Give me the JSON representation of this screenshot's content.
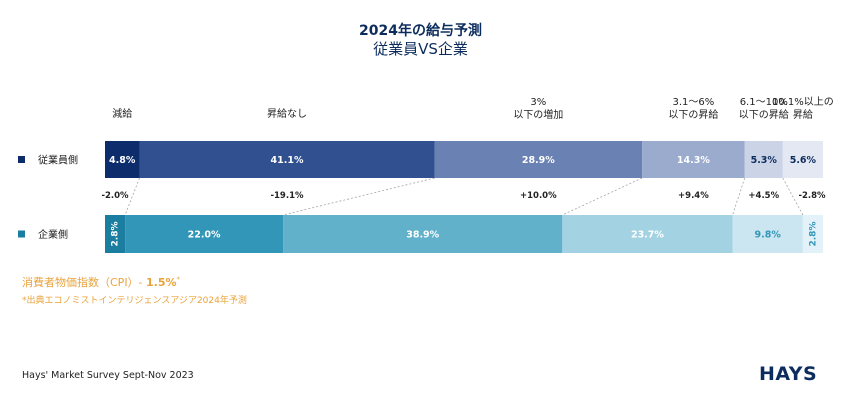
{
  "title": "2024年の給与予測",
  "subtitle": "従業員VS企業",
  "chart_data": {
    "type": "bar",
    "orientation": "horizontal-stacked-100",
    "categories": [
      "減給",
      "昇給なし",
      "3%\n以下の増加",
      "3.1〜6%\n以下の昇給",
      "6.1〜10%\n以下の昇給",
      "10.1%以上の\n昇給"
    ],
    "series": [
      {
        "name": "従業員側",
        "values": [
          4.8,
          41.1,
          28.9,
          14.3,
          5.3,
          5.6
        ],
        "labels": [
          "4.8%",
          "41.1%",
          "28.9%",
          "14.3%",
          "5.3%",
          "5.6%"
        ],
        "colors": [
          "#0d2c6c",
          "#30508f",
          "#6a81b3",
          "#9aabcd",
          "#cbd3e6",
          "#e4e8f3"
        ],
        "label_colors": [
          "#ffffff",
          "#ffffff",
          "#ffffff",
          "#ffffff",
          "#0d2c5e",
          "#0d2c5e"
        ]
      },
      {
        "name": "企業側",
        "values": [
          2.8,
          22.0,
          38.9,
          23.7,
          9.8,
          2.8
        ],
        "labels": [
          "2.8%",
          "22.0%",
          "38.9%",
          "23.7%",
          "9.8%",
          "2.8%"
        ],
        "colors": [
          "#1b7ea0",
          "#3296b8",
          "#62b1cb",
          "#a3d3e3",
          "#cbe6f0",
          "#e3f2f8"
        ],
        "label_colors": [
          "#ffffff",
          "#ffffff",
          "#ffffff",
          "#ffffff",
          "#3296b8",
          "#3296b8"
        ]
      }
    ],
    "differences": [
      "-2.0%",
      "-19.1%",
      "+10.0%",
      "+9.4%",
      "+4.5%",
      "-2.8%"
    ]
  },
  "cpi": {
    "label": "消費者物価指数（CPI）- ",
    "value": "1.5%",
    "mark": "*"
  },
  "source_note": "*出典エコノミストインテリジェンスアジア2024年予測",
  "footer": "Hays' Market Survey Sept-Nov 2023",
  "logo": "HAYS"
}
